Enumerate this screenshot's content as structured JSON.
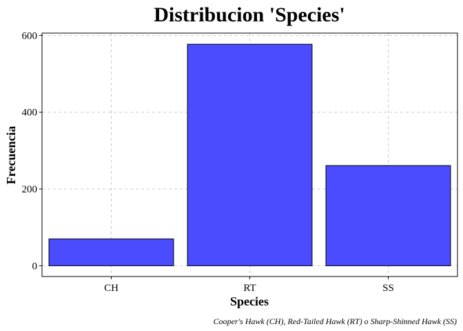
{
  "chart_data": {
    "type": "bar",
    "title": "Distribucion 'Species'",
    "xlabel": "Species",
    "ylabel": "Frecuencia",
    "caption": "Cooper's Hawk (CH), Red-Tailed Hawk (RT) o Sharp-Shinned Hawk (SS)",
    "categories": [
      "CH",
      "RT",
      "SS"
    ],
    "values": [
      70,
      577,
      261
    ],
    "ylim": [
      -28,
      606
    ],
    "yticks": [
      0,
      200,
      400,
      600
    ],
    "grid": true,
    "bar_color": "#4b4bff",
    "bar_outline": "#000000"
  }
}
